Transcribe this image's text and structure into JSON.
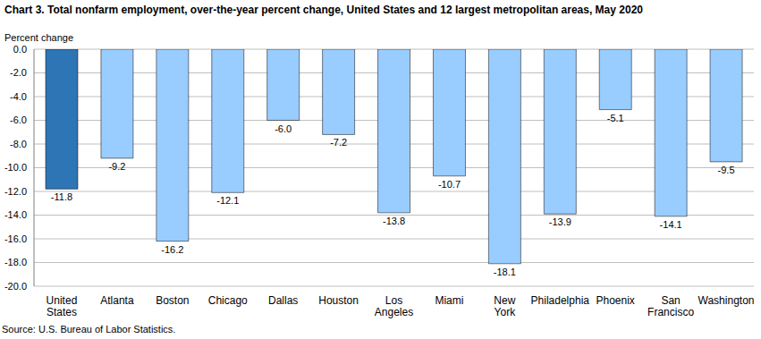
{
  "chart_data": {
    "type": "bar",
    "title": "Chart 3. Total nonfarm employment, over-the-year percent change, United States and 12 largest metropolitan areas, May 2020",
    "ylabel": "Percent change",
    "source": "Source: U.S. Bureau of Labor Statistics.",
    "categories": [
      "United States",
      "Atlanta",
      "Boston",
      "Chicago",
      "Dallas",
      "Houston",
      "Los Angeles",
      "Miami",
      "New York",
      "Philadelphia",
      "Phoenix",
      "San Francisco",
      "Washington"
    ],
    "values": [
      -11.8,
      -9.2,
      -16.2,
      -12.1,
      -6.0,
      -7.2,
      -13.8,
      -10.7,
      -18.1,
      -13.9,
      -5.1,
      -14.1,
      -9.5
    ],
    "value_labels": [
      "-11.8",
      "-9.2",
      "-16.2",
      "-12.1",
      "-6.0",
      "-7.2",
      "-13.8",
      "-10.7",
      "-18.1",
      "-13.9",
      "-5.1",
      "-14.1",
      "-9.5"
    ],
    "data_labels": true,
    "colors": [
      "#2e75b6",
      "#99ccff",
      "#99ccff",
      "#99ccff",
      "#99ccff",
      "#99ccff",
      "#99ccff",
      "#99ccff",
      "#99ccff",
      "#99ccff",
      "#99ccff",
      "#99ccff",
      "#99ccff"
    ],
    "ylim": [
      -20,
      0
    ],
    "yticks": [
      {
        "value": 0,
        "label": "0.0"
      },
      {
        "value": -2,
        "label": "-2.0"
      },
      {
        "value": -4,
        "label": "-4.0"
      },
      {
        "value": -6,
        "label": "-6.0"
      },
      {
        "value": -8,
        "label": "-8.0"
      },
      {
        "value": -10,
        "label": "-10.0"
      },
      {
        "value": -12,
        "label": "-12.0"
      },
      {
        "value": -14,
        "label": "-14.0"
      },
      {
        "value": -16,
        "label": "-16.0"
      },
      {
        "value": -18,
        "label": "-18.0"
      },
      {
        "value": -20,
        "label": "-20.0"
      }
    ],
    "grid": true
  }
}
